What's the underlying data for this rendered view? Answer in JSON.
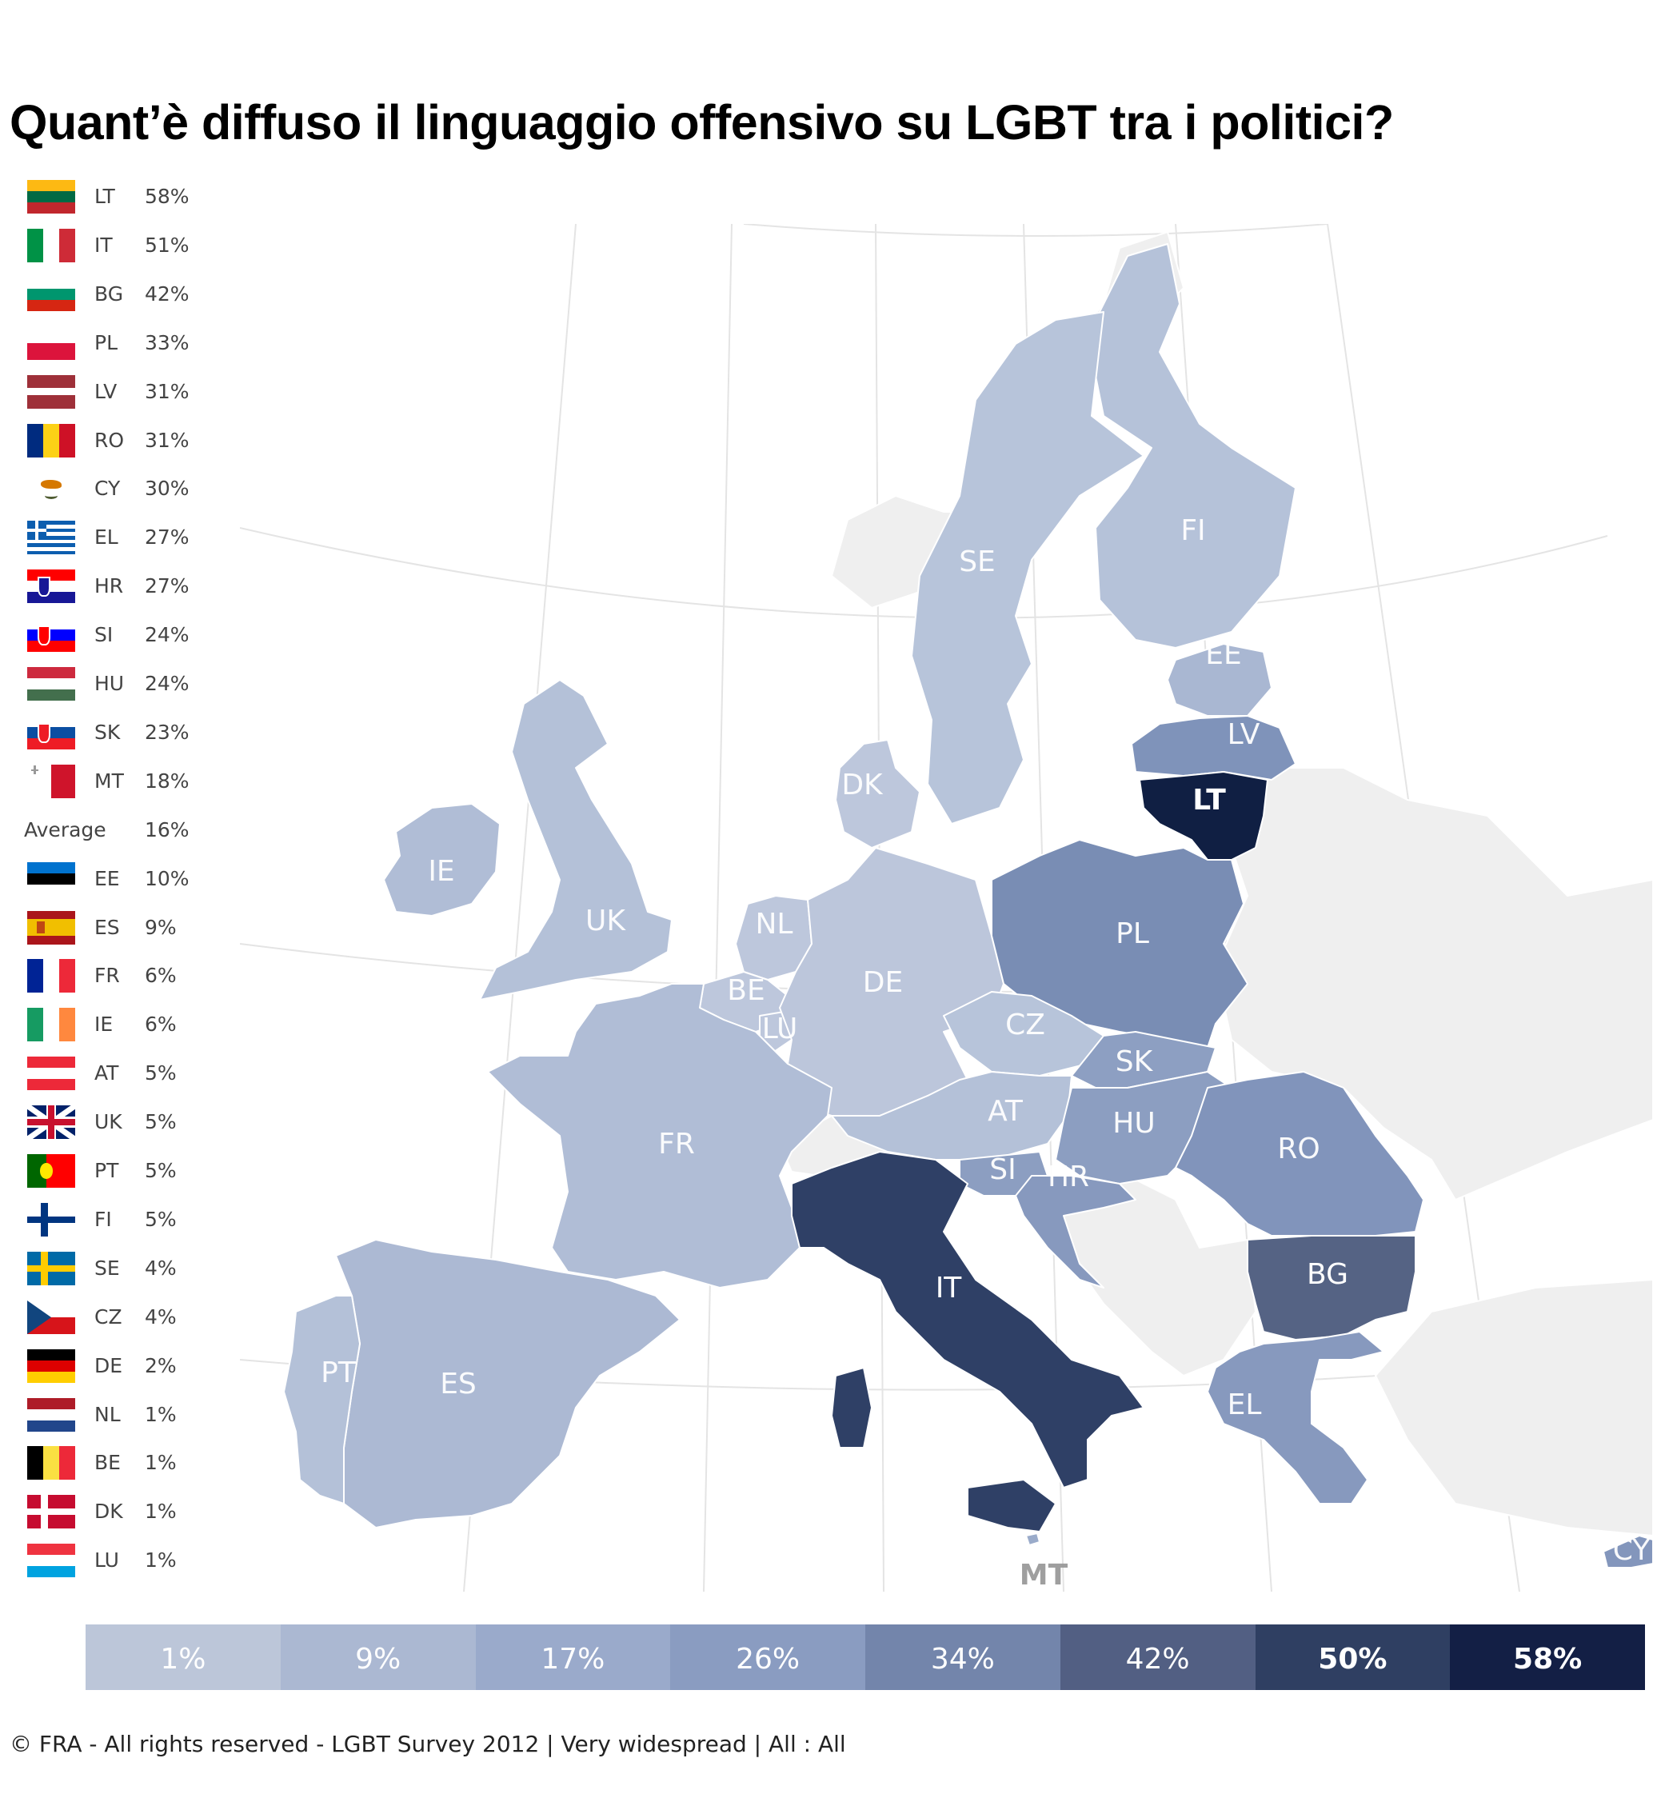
{
  "title": "Quant’è diffuso il linguaggio offensivo su LGBT tra i politici?",
  "legend": {
    "rows": [
      {
        "code": "LT",
        "value": "58%",
        "flag": {
          "type": "h",
          "colors": [
            "#FDB913",
            "#006A44",
            "#C1272D"
          ]
        }
      },
      {
        "code": "IT",
        "value": "51%",
        "flag": {
          "type": "v",
          "colors": [
            "#009246",
            "#FFFFFF",
            "#CE2B37"
          ]
        }
      },
      {
        "code": "BG",
        "value": "42%",
        "flag": {
          "type": "h",
          "colors": [
            "#FFFFFF",
            "#00966E",
            "#D62612"
          ]
        }
      },
      {
        "code": "PL",
        "value": "33%",
        "flag": {
          "type": "h",
          "colors": [
            "#FFFFFF",
            "#DC143C"
          ]
        }
      },
      {
        "code": "LV",
        "value": "31%",
        "flag": {
          "type": "h",
          "colors": [
            "#9E3039",
            "#9E3039",
            "#FFFFFF",
            "#9E3039",
            "#9E3039"
          ]
        }
      },
      {
        "code": "RO",
        "value": "31%",
        "flag": {
          "type": "v",
          "colors": [
            "#002B7F",
            "#FCD116",
            "#CE1126"
          ]
        }
      },
      {
        "code": "CY",
        "value": "30%",
        "flag": {
          "type": "cy",
          "colors": [
            "#FFFFFF",
            "#D57800",
            "#4E5B31"
          ]
        }
      },
      {
        "code": "EL",
        "value": "27%",
        "flag": {
          "type": "gr",
          "colors": [
            "#0D5EAF",
            "#FFFFFF"
          ]
        }
      },
      {
        "code": "HR",
        "value": "27%",
        "flag": {
          "type": "hcrest",
          "colors": [
            "#FF0000",
            "#FFFFFF",
            "#171796"
          ]
        }
      },
      {
        "code": "SI",
        "value": "24%",
        "flag": {
          "type": "hcrest",
          "colors": [
            "#FFFFFF",
            "#0000FF",
            "#FF0000"
          ]
        }
      },
      {
        "code": "HU",
        "value": "24%",
        "flag": {
          "type": "h",
          "colors": [
            "#CD2A3E",
            "#FFFFFF",
            "#436F4D"
          ]
        }
      },
      {
        "code": "SK",
        "value": "23%",
        "flag": {
          "type": "hcrest",
          "colors": [
            "#FFFFFF",
            "#0B4EA2",
            "#EE1C25"
          ]
        }
      },
      {
        "code": "MT",
        "value": "18%",
        "flag": {
          "type": "mt",
          "colors": [
            "#FFFFFF",
            "#CF142B"
          ]
        }
      },
      {
        "average": true,
        "label": "Average",
        "value": "16%"
      },
      {
        "code": "EE",
        "value": "10%",
        "flag": {
          "type": "h",
          "colors": [
            "#0072CE",
            "#000000",
            "#FFFFFF"
          ]
        }
      },
      {
        "code": "ES",
        "value": "9%",
        "flag": {
          "type": "es",
          "colors": [
            "#AA151B",
            "#F1BF00",
            "#AA151B"
          ]
        }
      },
      {
        "code": "FR",
        "value": "6%",
        "flag": {
          "type": "v",
          "colors": [
            "#002395",
            "#FFFFFF",
            "#ED2939"
          ]
        }
      },
      {
        "code": "IE",
        "value": "6%",
        "flag": {
          "type": "v",
          "colors": [
            "#169B62",
            "#FFFFFF",
            "#FF883E"
          ]
        }
      },
      {
        "code": "AT",
        "value": "5%",
        "flag": {
          "type": "h",
          "colors": [
            "#ED2939",
            "#FFFFFF",
            "#ED2939"
          ]
        }
      },
      {
        "code": "UK",
        "value": "5%",
        "flag": {
          "type": "uk",
          "colors": [
            "#012169",
            "#FFFFFF",
            "#C8102E"
          ]
        }
      },
      {
        "code": "PT",
        "value": "5%",
        "flag": {
          "type": "pt",
          "colors": [
            "#006600",
            "#FF0000",
            "#FFE900"
          ]
        }
      },
      {
        "code": "FI",
        "value": "5%",
        "flag": {
          "type": "nordic",
          "colors": [
            "#FFFFFF",
            "#003580"
          ]
        }
      },
      {
        "code": "SE",
        "value": "4%",
        "flag": {
          "type": "nordic",
          "colors": [
            "#006AA7",
            "#FECC00"
          ]
        }
      },
      {
        "code": "CZ",
        "value": "4%",
        "flag": {
          "type": "cz",
          "colors": [
            "#FFFFFF",
            "#D7141A",
            "#11457E"
          ]
        }
      },
      {
        "code": "DE",
        "value": "2%",
        "flag": {
          "type": "h",
          "colors": [
            "#000000",
            "#DD0000",
            "#FFCE00"
          ]
        }
      },
      {
        "code": "NL",
        "value": "1%",
        "flag": {
          "type": "h",
          "colors": [
            "#AE1C28",
            "#FFFFFF",
            "#21468B"
          ]
        }
      },
      {
        "code": "BE",
        "value": "1%",
        "flag": {
          "type": "v",
          "colors": [
            "#000000",
            "#FAE042",
            "#ED2939"
          ]
        }
      },
      {
        "code": "DK",
        "value": "1%",
        "flag": {
          "type": "nordic",
          "colors": [
            "#C60C30",
            "#FFFFFF"
          ]
        }
      },
      {
        "code": "LU",
        "value": "1%",
        "flag": {
          "type": "h",
          "colors": [
            "#EF3340",
            "#FFFFFF",
            "#00A3E0"
          ]
        }
      }
    ]
  },
  "map": {
    "background_land": "#EFEFEF",
    "countries": [
      {
        "code": "FI",
        "value": 5,
        "color": "#B5C2D9"
      },
      {
        "code": "SE",
        "value": 4,
        "color": "#B7C4DA"
      },
      {
        "code": "EE",
        "value": 10,
        "color": "#A9B7D2"
      },
      {
        "code": "LV",
        "value": 31,
        "color": "#7F93BA"
      },
      {
        "code": "LT",
        "value": 58,
        "color": "#101F43"
      },
      {
        "code": "DK",
        "value": 1,
        "color": "#BDC7DC"
      },
      {
        "code": "IE",
        "value": 6,
        "color": "#B0BDD6"
      },
      {
        "code": "UK",
        "value": 5,
        "color": "#B4C1D8"
      },
      {
        "code": "NL",
        "value": 1,
        "color": "#BDC7DC"
      },
      {
        "code": "BE",
        "value": 1,
        "color": "#BDC7DC"
      },
      {
        "code": "LU",
        "value": 1,
        "color": "#BDC7DC"
      },
      {
        "code": "DE",
        "value": 2,
        "color": "#BCC6DB"
      },
      {
        "code": "PL",
        "value": 33,
        "color": "#798DB4"
      },
      {
        "code": "CZ",
        "value": 4,
        "color": "#B7C4DA"
      },
      {
        "code": "SK",
        "value": 23,
        "color": "#8D9FC2"
      },
      {
        "code": "AT",
        "value": 5,
        "color": "#B4C1D8"
      },
      {
        "code": "HU",
        "value": 24,
        "color": "#8C9EC1"
      },
      {
        "code": "RO",
        "value": 31,
        "color": "#8194BB"
      },
      {
        "code": "SI",
        "value": 24,
        "color": "#8C9EC1"
      },
      {
        "code": "HR",
        "value": 27,
        "color": "#8799BE"
      },
      {
        "code": "FR",
        "value": 6,
        "color": "#B0BDD6"
      },
      {
        "code": "IT",
        "value": 51,
        "color": "#2F4066"
      },
      {
        "code": "BG",
        "value": 42,
        "color": "#556384"
      },
      {
        "code": "EL",
        "value": 27,
        "color": "#8799BE"
      },
      {
        "code": "ES",
        "value": 9,
        "color": "#ACB9D3"
      },
      {
        "code": "PT",
        "value": 5,
        "color": "#B4C1D8"
      },
      {
        "code": "MT",
        "value": 18,
        "color": "#9AABCA"
      },
      {
        "code": "CY",
        "value": 30,
        "color": "#8396BC"
      }
    ]
  },
  "scale": {
    "steps": [
      {
        "label": "1%",
        "color": "#BCC6D9"
      },
      {
        "label": "9%",
        "color": "#ABB8D2"
      },
      {
        "label": "17%",
        "color": "#9AAACB"
      },
      {
        "label": "26%",
        "color": "#8A9CC1"
      },
      {
        "label": "34%",
        "color": "#7385AB"
      },
      {
        "label": "42%",
        "color": "#525F83"
      },
      {
        "label": "50%",
        "color": "#2F3F62"
      },
      {
        "label": "58%",
        "color": "#131F45"
      }
    ]
  },
  "footer": "© FRA - All rights reserved - LGBT Survey 2012 | Very widespread | All : All"
}
